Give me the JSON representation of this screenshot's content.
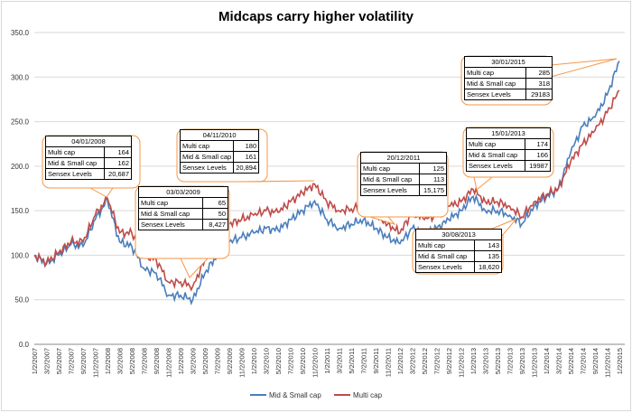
{
  "chart_data": {
    "type": "line",
    "title": "Midcaps carry higher volatility",
    "xlabel": "",
    "ylabel": "",
    "ylim": [
      0,
      350
    ],
    "yticks": [
      "0.0",
      "50.0",
      "100.0",
      "150.0",
      "200.0",
      "250.0",
      "300.0",
      "350.0"
    ],
    "grid": true,
    "legend_position": "bottom",
    "x": [
      "1/2/2007",
      "3/2/2007",
      "5/2/2007",
      "7/2/2007",
      "9/2/2007",
      "11/2/2007",
      "1/2/2008",
      "3/2/2008",
      "5/2/2008",
      "7/2/2008",
      "9/2/2008",
      "11/2/2008",
      "1/2/2009",
      "3/2/2009",
      "5/2/2009",
      "7/2/2009",
      "9/2/2009",
      "11/2/2009",
      "1/2/2010",
      "3/2/2010",
      "5/2/2010",
      "7/2/2010",
      "9/2/2010",
      "11/2/2010",
      "1/2/2011",
      "3/2/2011",
      "5/2/2011",
      "7/2/2011",
      "9/2/2011",
      "11/2/2011",
      "1/2/2012",
      "3/2/2012",
      "5/2/2012",
      "7/2/2012",
      "9/2/2012",
      "11/2/2012",
      "1/2/2013",
      "3/2/2013",
      "5/2/2013",
      "7/2/2013",
      "9/2/2013",
      "11/2/2013",
      "1/2/2014",
      "3/2/2014",
      "5/2/2014",
      "7/2/2014",
      "9/2/2014",
      "11/2/2014",
      "1/2/2015"
    ],
    "series": [
      {
        "name": "Mid & Small cap",
        "color": "#4a7ebb",
        "values": [
          100,
          90,
          100,
          112,
          110,
          140,
          162,
          115,
          110,
          85,
          80,
          55,
          55,
          50,
          80,
          100,
          115,
          120,
          125,
          130,
          128,
          140,
          150,
          161,
          140,
          130,
          135,
          140,
          130,
          120,
          113,
          130,
          125,
          130,
          140,
          150,
          166,
          150,
          150,
          145,
          135,
          155,
          165,
          175,
          215,
          245,
          255,
          280,
          318
        ]
      },
      {
        "name": "Multi cap",
        "color": "#be4b48",
        "values": [
          100,
          92,
          103,
          115,
          115,
          145,
          164,
          125,
          125,
          100,
          95,
          70,
          70,
          65,
          95,
          120,
          135,
          140,
          145,
          150,
          148,
          160,
          170,
          180,
          160,
          150,
          152,
          155,
          145,
          135,
          125,
          148,
          140,
          145,
          155,
          160,
          174,
          160,
          160,
          155,
          143,
          160,
          168,
          175,
          205,
          225,
          240,
          260,
          285
        ]
      }
    ],
    "annotations": [
      {
        "date": "04/01/2008",
        "multi_label": "Multi cap",
        "multi": "164",
        "mid_label": "Mid & Small cap",
        "mid": "162",
        "sensex_label": "Sensex Levels",
        "sensex": "20,687"
      },
      {
        "date": "03/03/2009",
        "multi_label": "Multi cap",
        "multi": "65",
        "mid_label": "Mid & Small cap",
        "mid": "50",
        "sensex_label": "Sensex Levels",
        "sensex": "8,427"
      },
      {
        "date": "04/11/2010",
        "multi_label": "Multi cap",
        "multi": "180",
        "mid_label": "Mid & Small cap",
        "mid": "161",
        "sensex_label": "Sensex Levels",
        "sensex": "20,894"
      },
      {
        "date": "20/12/2011",
        "multi_label": "Multi cap",
        "multi": "125",
        "mid_label": "Mid & Small cap",
        "mid": "113",
        "sensex_label": "Sensex Levels",
        "sensex": "15,175"
      },
      {
        "date": "15/01/2013",
        "multi_label": "Multi cap",
        "multi": "174",
        "mid_label": "Mid & Small cap",
        "mid": "166",
        "sensex_label": "Sensex Levels",
        "sensex": "19987"
      },
      {
        "date": "30/08/2013",
        "multi_label": "Multi cap",
        "multi": "143",
        "mid_label": "Mid & Small cap",
        "mid": "135",
        "sensex_label": "Sensex Levels",
        "sensex": "18,620"
      },
      {
        "date": "30/01/2015",
        "multi_label": "Multi cap",
        "multi": "285",
        "mid_label": "Mid & Small cap",
        "mid": "318",
        "sensex_label": "Sensex Levels",
        "sensex": "29183"
      }
    ],
    "callout_color": "#f79646"
  }
}
